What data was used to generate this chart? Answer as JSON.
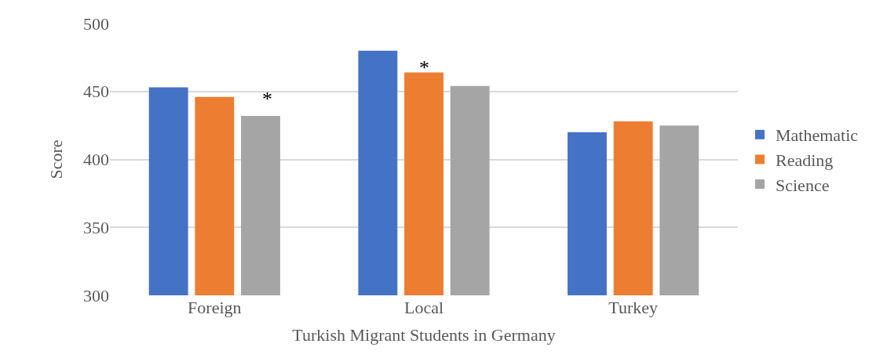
{
  "chart_data": {
    "type": "bar",
    "xlabel": "Turkish Migrant Students in Germany",
    "ylabel": "Score",
    "categories": [
      "Foreign",
      "Local",
      "Turkey"
    ],
    "series": [
      {
        "name": "Mathematic",
        "color": "#4472c4",
        "values": [
          453,
          480,
          420
        ]
      },
      {
        "name": "Reading",
        "color": "#ed7d31",
        "values": [
          446,
          464,
          428
        ]
      },
      {
        "name": "Science",
        "color": "#a5a5a5",
        "values": [
          432,
          454,
          425
        ]
      }
    ],
    "ylim": [
      300,
      500
    ],
    "yticks": [
      300,
      350,
      400,
      450,
      500
    ],
    "grid": "y",
    "legend": "right",
    "annotations": [
      "*",
      {
        "text": "*",
        "x": "Local",
        "y": 464
      }
    ]
  }
}
